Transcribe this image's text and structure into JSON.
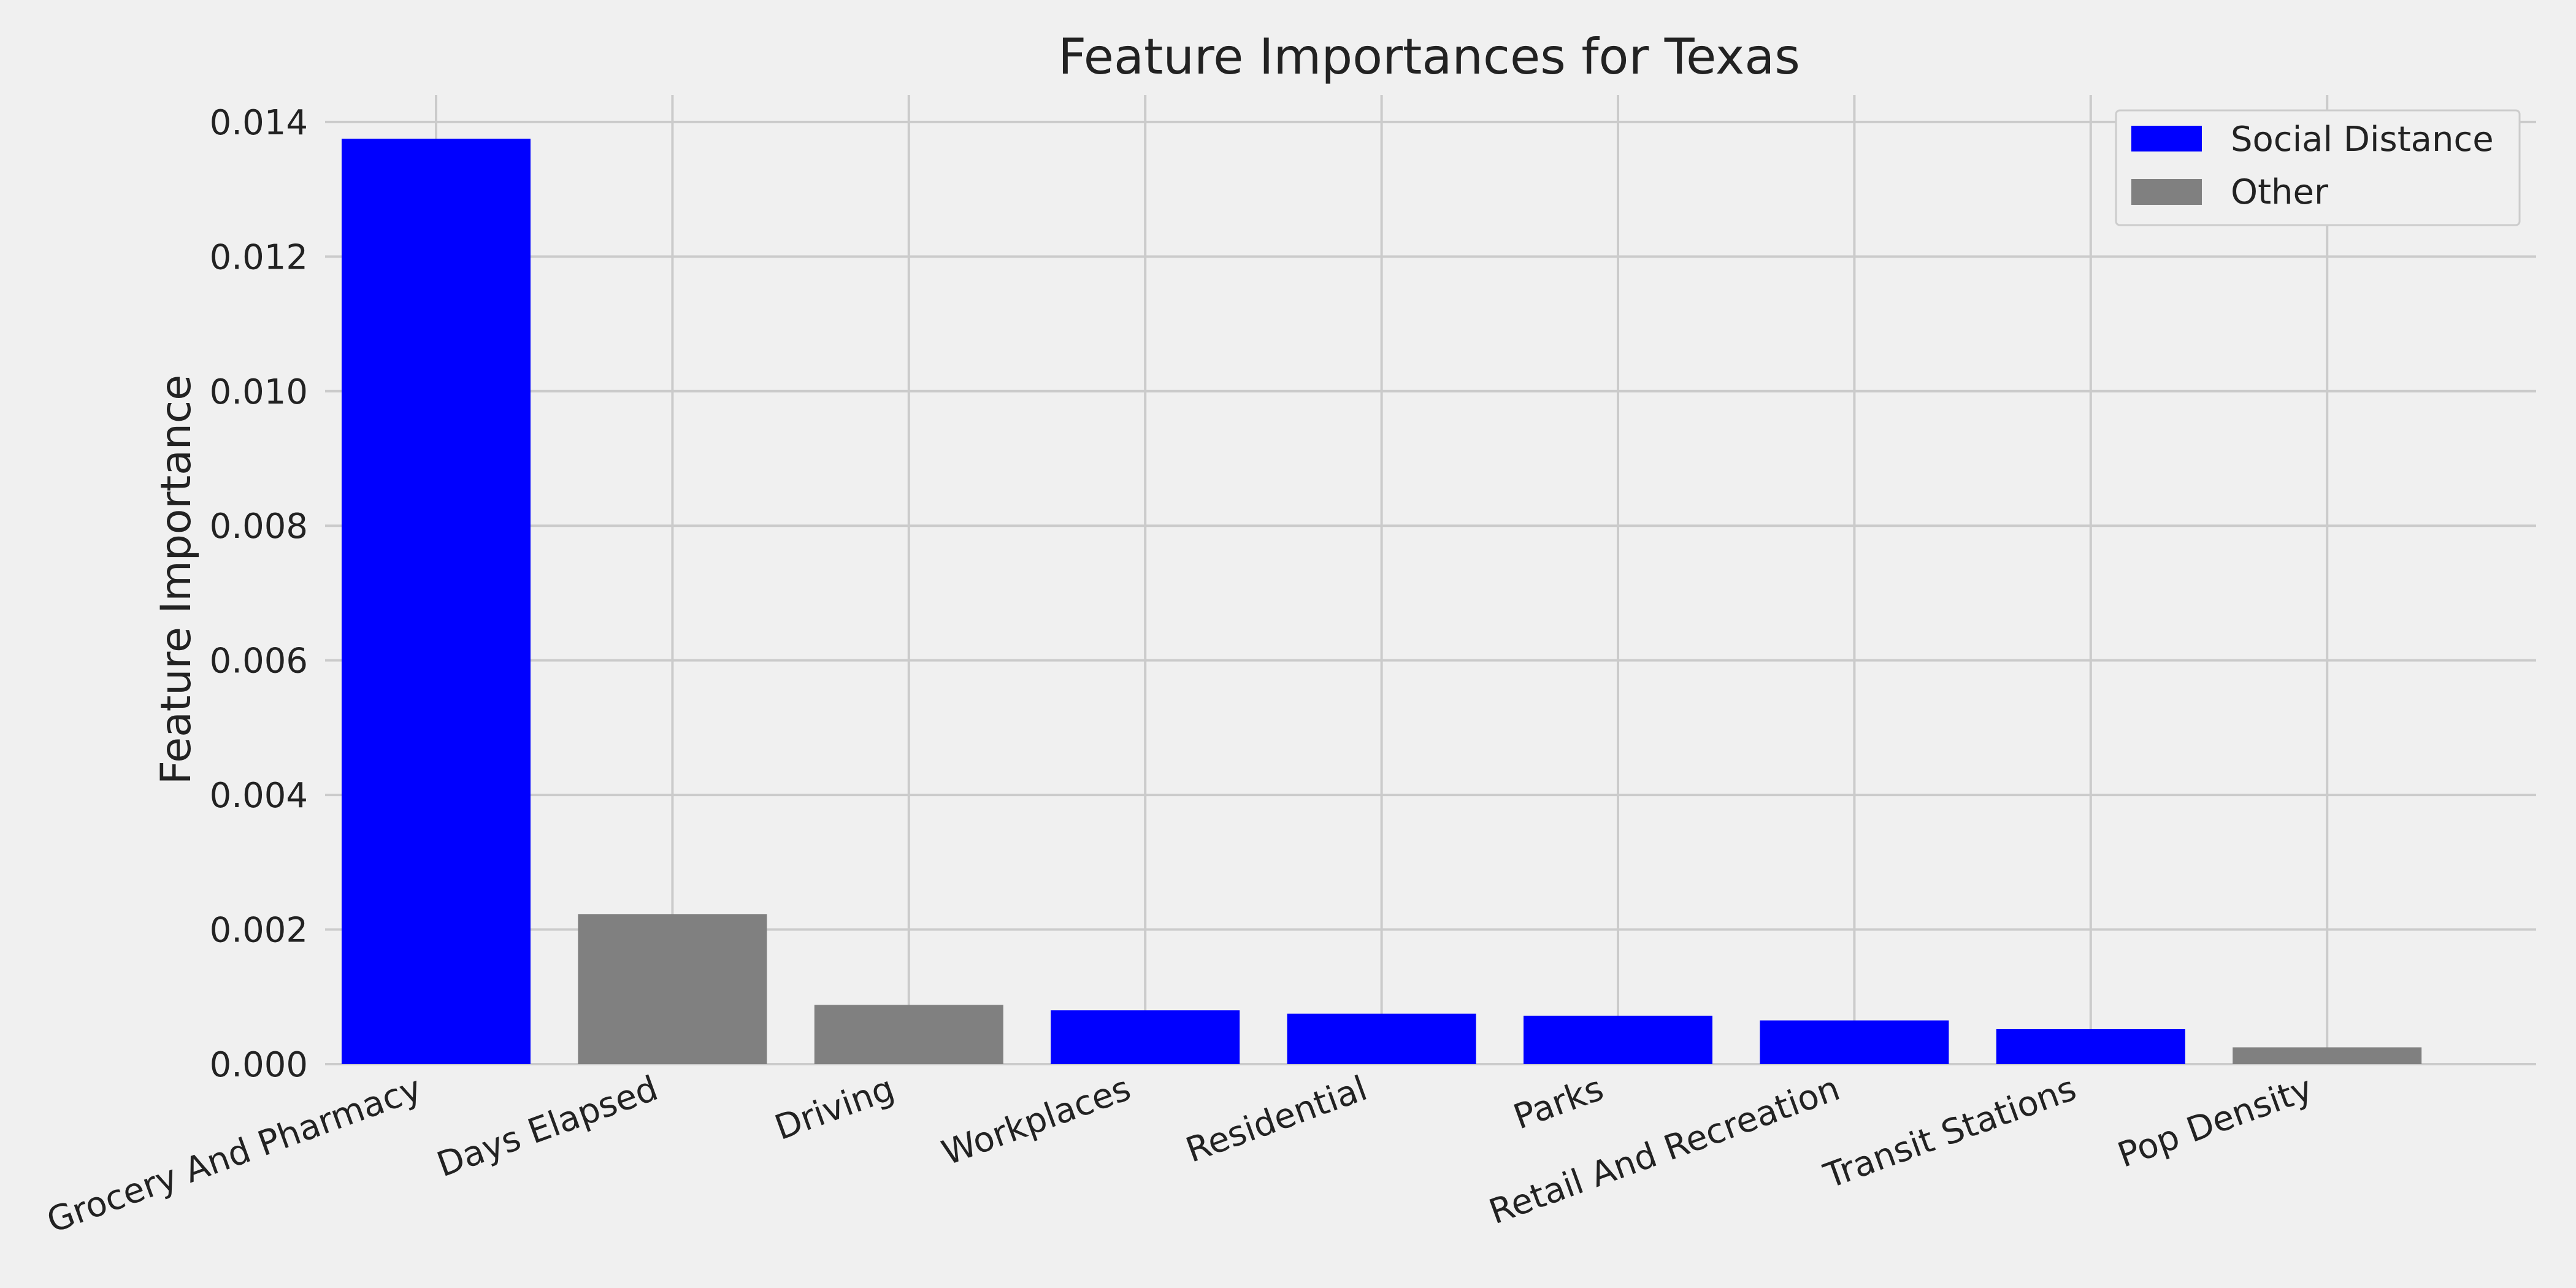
{
  "chart_data": {
    "type": "bar",
    "title": "Feature Importances for Texas",
    "xlabel": "",
    "ylabel": "Feature Importance",
    "ylim": [
      0,
      0.0144
    ],
    "yticks": [
      "0.000",
      "0.002",
      "0.004",
      "0.006",
      "0.008",
      "0.010",
      "0.012",
      "0.014"
    ],
    "categories": [
      "Grocery And Pharmacy",
      "Days Elapsed",
      "Driving",
      "Workplaces",
      "Residential",
      "Parks",
      "Retail And Recreation",
      "Transit Stations",
      "Pop Density"
    ],
    "values": [
      0.01375,
      0.00223,
      0.00088,
      0.0008,
      0.00075,
      0.00072,
      0.00065,
      0.00052,
      0.00025
    ],
    "groups": [
      "Social Distance",
      "Other",
      "Other",
      "Social Distance",
      "Social Distance",
      "Social Distance",
      "Social Distance",
      "Social Distance",
      "Other"
    ],
    "legend": {
      "placement": "top-right",
      "items": [
        {
          "label": "Social Distance",
          "color": "#0000ff"
        },
        {
          "label": "Other",
          "color": "#808080"
        }
      ]
    },
    "grid": true,
    "colors": {
      "Social Distance": "#0000ff",
      "Other": "#808080",
      "background": "#f0f0f0",
      "grid": "#cbcbcb"
    }
  }
}
